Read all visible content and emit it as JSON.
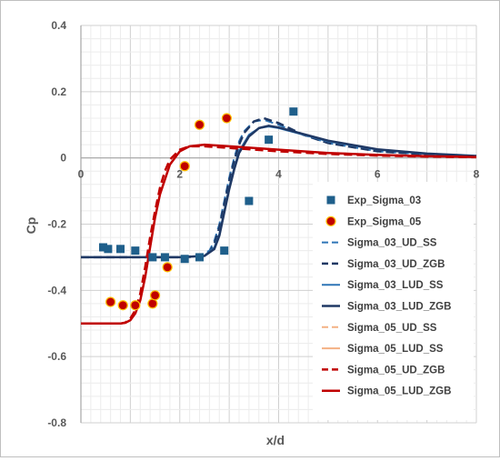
{
  "chart_data": {
    "type": "line",
    "xlabel": "x/d",
    "ylabel": "Cp",
    "xlim": [
      0,
      8
    ],
    "ylim": [
      -0.8,
      0.4
    ],
    "x_ticks": [
      0,
      2,
      4,
      6,
      8
    ],
    "y_ticks": [
      0.4,
      0.2,
      0,
      -0.2,
      -0.4,
      -0.6,
      -0.8
    ],
    "x_tick_labels": [
      "0",
      "2",
      "4",
      "6",
      "8"
    ],
    "y_tick_labels": [
      "0.4",
      "0.2",
      "0",
      "-0.2",
      "-0.4",
      "-0.6",
      "-0.8"
    ],
    "grid": true,
    "legend_position": "right",
    "series": [
      {
        "name": "Exp_Sigma_03",
        "kind": "scatter",
        "marker": "square",
        "color": "#1f5f8b",
        "x": [
          0.45,
          0.55,
          0.8,
          1.1,
          1.45,
          1.7,
          2.1,
          2.4,
          2.9,
          3.4,
          3.8,
          4.3
        ],
        "y": [
          -0.27,
          -0.275,
          -0.275,
          -0.28,
          -0.3,
          -0.3,
          -0.305,
          -0.3,
          -0.28,
          -0.13,
          0.055,
          0.14
        ]
      },
      {
        "name": "Exp_Sigma_05",
        "kind": "scatter",
        "marker": "circle",
        "color": "#c00000",
        "edge": "#ffc000",
        "x": [
          0.6,
          0.85,
          1.1,
          1.45,
          1.5,
          1.75,
          2.1,
          2.4,
          2.95
        ],
        "y": [
          -0.435,
          -0.445,
          -0.445,
          -0.44,
          -0.415,
          -0.33,
          -0.025,
          0.1,
          0.12
        ]
      },
      {
        "name": "Sigma_03_UD_SS",
        "kind": "line",
        "dash": "dashed",
        "color": "#2e75b6",
        "width": 2,
        "x": [
          0,
          1,
          2,
          2.4,
          2.6,
          2.7,
          2.8,
          2.9,
          3.0,
          3.1,
          3.2,
          3.3,
          3.5,
          3.7,
          4.0,
          4.5,
          5,
          6,
          7,
          8
        ],
        "y": [
          -0.3,
          -0.3,
          -0.3,
          -0.295,
          -0.28,
          -0.25,
          -0.2,
          -0.13,
          -0.06,
          0.0,
          0.05,
          0.08,
          0.11,
          0.115,
          0.1,
          0.07,
          0.045,
          0.02,
          0.01,
          0.005
        ]
      },
      {
        "name": "Sigma_03_UD_ZGB",
        "kind": "line",
        "dash": "dashed",
        "color": "#1f3864",
        "width": 2.5,
        "x": [
          0,
          1,
          2,
          2.4,
          2.6,
          2.7,
          2.8,
          2.9,
          3.0,
          3.1,
          3.2,
          3.3,
          3.5,
          3.7,
          4.0,
          4.5,
          5,
          6,
          7,
          8
        ],
        "y": [
          -0.3,
          -0.3,
          -0.3,
          -0.298,
          -0.285,
          -0.26,
          -0.21,
          -0.14,
          -0.07,
          -0.01,
          0.04,
          0.075,
          0.11,
          0.12,
          0.105,
          0.07,
          0.045,
          0.02,
          0.01,
          0.005
        ]
      },
      {
        "name": "Sigma_03_LUD_SS",
        "kind": "line",
        "dash": "solid",
        "color": "#2e75b6",
        "width": 2,
        "x": [
          0,
          1,
          2,
          2.5,
          2.7,
          2.8,
          2.9,
          3.0,
          3.1,
          3.2,
          3.4,
          3.6,
          3.8,
          4.0,
          4.5,
          5,
          6,
          7,
          8
        ],
        "y": [
          -0.3,
          -0.3,
          -0.3,
          -0.295,
          -0.27,
          -0.23,
          -0.16,
          -0.09,
          -0.03,
          0.02,
          0.07,
          0.09,
          0.095,
          0.09,
          0.07,
          0.05,
          0.025,
          0.012,
          0.006
        ]
      },
      {
        "name": "Sigma_03_LUD_ZGB",
        "kind": "line",
        "dash": "solid",
        "color": "#1f3864",
        "width": 2.5,
        "x": [
          0,
          1,
          2,
          2.5,
          2.7,
          2.8,
          2.9,
          3.0,
          3.1,
          3.2,
          3.4,
          3.6,
          3.8,
          4.0,
          4.5,
          5,
          6,
          7,
          8
        ],
        "y": [
          -0.3,
          -0.3,
          -0.3,
          -0.296,
          -0.275,
          -0.235,
          -0.165,
          -0.095,
          -0.035,
          0.015,
          0.065,
          0.09,
          0.097,
          0.092,
          0.072,
          0.052,
          0.026,
          0.013,
          0.006
        ]
      },
      {
        "name": "Sigma_05_UD_SS",
        "kind": "line",
        "dash": "dashed",
        "color": "#f4b183",
        "width": 2,
        "x": [
          0,
          0.8,
          0.9,
          1.0,
          1.1,
          1.2,
          1.3,
          1.4,
          1.5,
          1.6,
          1.7,
          1.8,
          2.0,
          2.2,
          2.5,
          3,
          4,
          5,
          6,
          7,
          8
        ],
        "y": [
          -0.5,
          -0.5,
          -0.497,
          -0.485,
          -0.46,
          -0.41,
          -0.33,
          -0.24,
          -0.16,
          -0.09,
          -0.04,
          -0.005,
          0.025,
          0.035,
          0.035,
          0.03,
          0.02,
          0.012,
          0.007,
          0.004,
          0.002
        ]
      },
      {
        "name": "Sigma_05_LUD_SS",
        "kind": "line",
        "dash": "solid",
        "color": "#f4b183",
        "width": 2,
        "x": [
          0,
          0.8,
          0.9,
          1.0,
          1.1,
          1.2,
          1.3,
          1.4,
          1.5,
          1.6,
          1.8,
          2.0,
          2.2,
          2.5,
          3,
          4,
          5,
          6,
          7,
          8
        ],
        "y": [
          -0.5,
          -0.5,
          -0.498,
          -0.49,
          -0.47,
          -0.43,
          -0.36,
          -0.27,
          -0.18,
          -0.11,
          -0.02,
          0.02,
          0.035,
          0.04,
          0.035,
          0.025,
          0.015,
          0.009,
          0.005,
          0.003
        ]
      },
      {
        "name": "Sigma_05_UD_ZGB",
        "kind": "line",
        "dash": "dashed",
        "color": "#c00000",
        "width": 2.5,
        "x": [
          0,
          0.8,
          0.9,
          1.0,
          1.1,
          1.2,
          1.3,
          1.4,
          1.5,
          1.6,
          1.7,
          1.8,
          2.0,
          2.2,
          2.5,
          3,
          4,
          5,
          6,
          7,
          8
        ],
        "y": [
          -0.5,
          -0.5,
          -0.497,
          -0.485,
          -0.46,
          -0.41,
          -0.33,
          -0.24,
          -0.16,
          -0.09,
          -0.04,
          -0.005,
          0.025,
          0.035,
          0.035,
          0.03,
          0.02,
          0.012,
          0.007,
          0.004,
          0.002
        ]
      },
      {
        "name": "Sigma_05_LUD_ZGB",
        "kind": "line",
        "dash": "solid",
        "color": "#c00000",
        "width": 2.5,
        "x": [
          0,
          0.8,
          0.9,
          1.0,
          1.1,
          1.2,
          1.3,
          1.4,
          1.5,
          1.6,
          1.8,
          2.0,
          2.2,
          2.5,
          3,
          4,
          5,
          6,
          7,
          8
        ],
        "y": [
          -0.5,
          -0.5,
          -0.498,
          -0.49,
          -0.47,
          -0.43,
          -0.36,
          -0.27,
          -0.18,
          -0.11,
          -0.02,
          0.02,
          0.035,
          0.04,
          0.035,
          0.025,
          0.015,
          0.009,
          0.005,
          0.003
        ]
      }
    ]
  }
}
